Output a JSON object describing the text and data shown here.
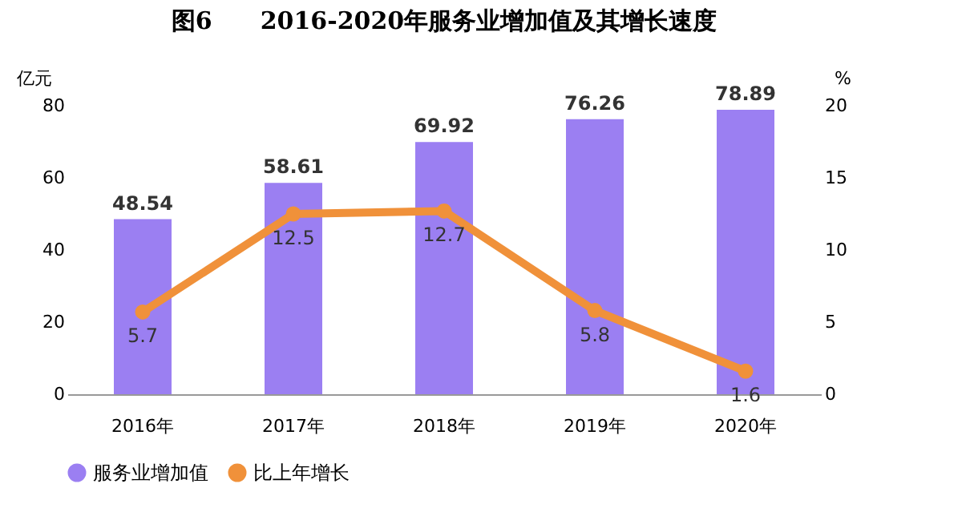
{
  "chart_data": {
    "type": "bar",
    "title": "图6　　2016-2020年服务业增加值及其增长速度",
    "ylabel": "亿元",
    "y2label": "%",
    "categories": [
      "2016年",
      "2017年",
      "2018年",
      "2019年",
      "2020年"
    ],
    "series": [
      {
        "name": "服务业增加值",
        "color": "#9b7ff2",
        "values": [
          48.54,
          58.61,
          69.92,
          76.26,
          78.89
        ]
      },
      {
        "name": "比上年增长",
        "type": "line",
        "axis": "y2",
        "color": "#f0913a",
        "marker": "circle",
        "values": [
          5.7,
          12.5,
          12.7,
          5.8,
          1.6
        ]
      }
    ],
    "ylim": [
      0,
      80
    ],
    "yticks": [
      0,
      20,
      40,
      60,
      80
    ],
    "y2lim": [
      0,
      20
    ],
    "y2ticks": [
      0,
      5,
      10,
      15,
      20
    ],
    "data_labels": true,
    "grid": false,
    "legend": "bottom"
  }
}
